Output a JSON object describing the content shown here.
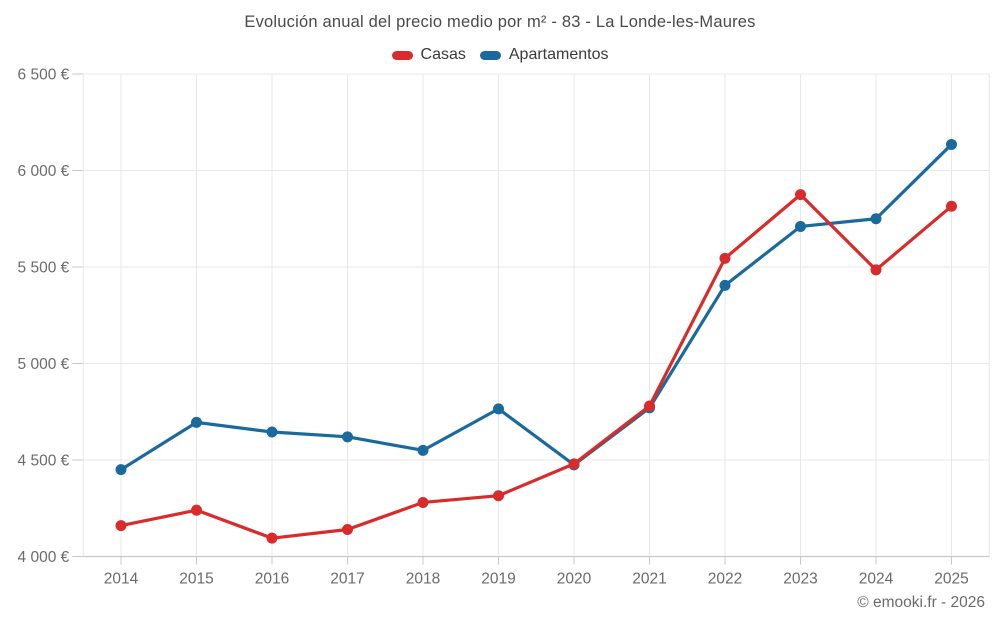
{
  "title": "Evolución anual del precio medio por m² - 83 - La Londe-les-Maures",
  "footer": "© emooki.fr - 2026",
  "colors": {
    "casas": "#d92b2b",
    "apartamentos": "#1a6a9e",
    "grid": "#e8e8e8",
    "axis": "#c9c9c9",
    "axis_text": "#6b6b6b",
    "title_text": "#4a4a4a"
  },
  "chart_data": {
    "type": "line",
    "title": "Evolución anual del precio medio por m² - 83 - La Londe-les-Maures",
    "categories": [
      "2014",
      "2015",
      "2016",
      "2017",
      "2018",
      "2019",
      "2020",
      "2021",
      "2022",
      "2023",
      "2024",
      "2025"
    ],
    "series": [
      {
        "name": "Casas",
        "color": "#d92b2b",
        "values": [
          4160,
          4240,
          4095,
          4140,
          4280,
          4315,
          4480,
          4780,
          5545,
          5875,
          5485,
          5815
        ]
      },
      {
        "name": "Apartamentos",
        "color": "#1a6a9e",
        "values": [
          4450,
          4695,
          4645,
          4620,
          4550,
          4765,
          4475,
          4770,
          5405,
          5710,
          5750,
          6135
        ]
      }
    ],
    "xlabel": "",
    "ylabel": "",
    "ylim": [
      4000,
      6500
    ],
    "grid": true,
    "legend_position": "top",
    "y_ticks": [
      {
        "value": 6500,
        "label": "6 500 €"
      },
      {
        "value": 6000,
        "label": "6 000 €"
      },
      {
        "value": 5500,
        "label": "5 500 €"
      },
      {
        "value": 5000,
        "label": "5 000 €"
      },
      {
        "value": 4500,
        "label": "4 500 €"
      },
      {
        "value": 4000,
        "label": "4 000 €"
      }
    ]
  }
}
